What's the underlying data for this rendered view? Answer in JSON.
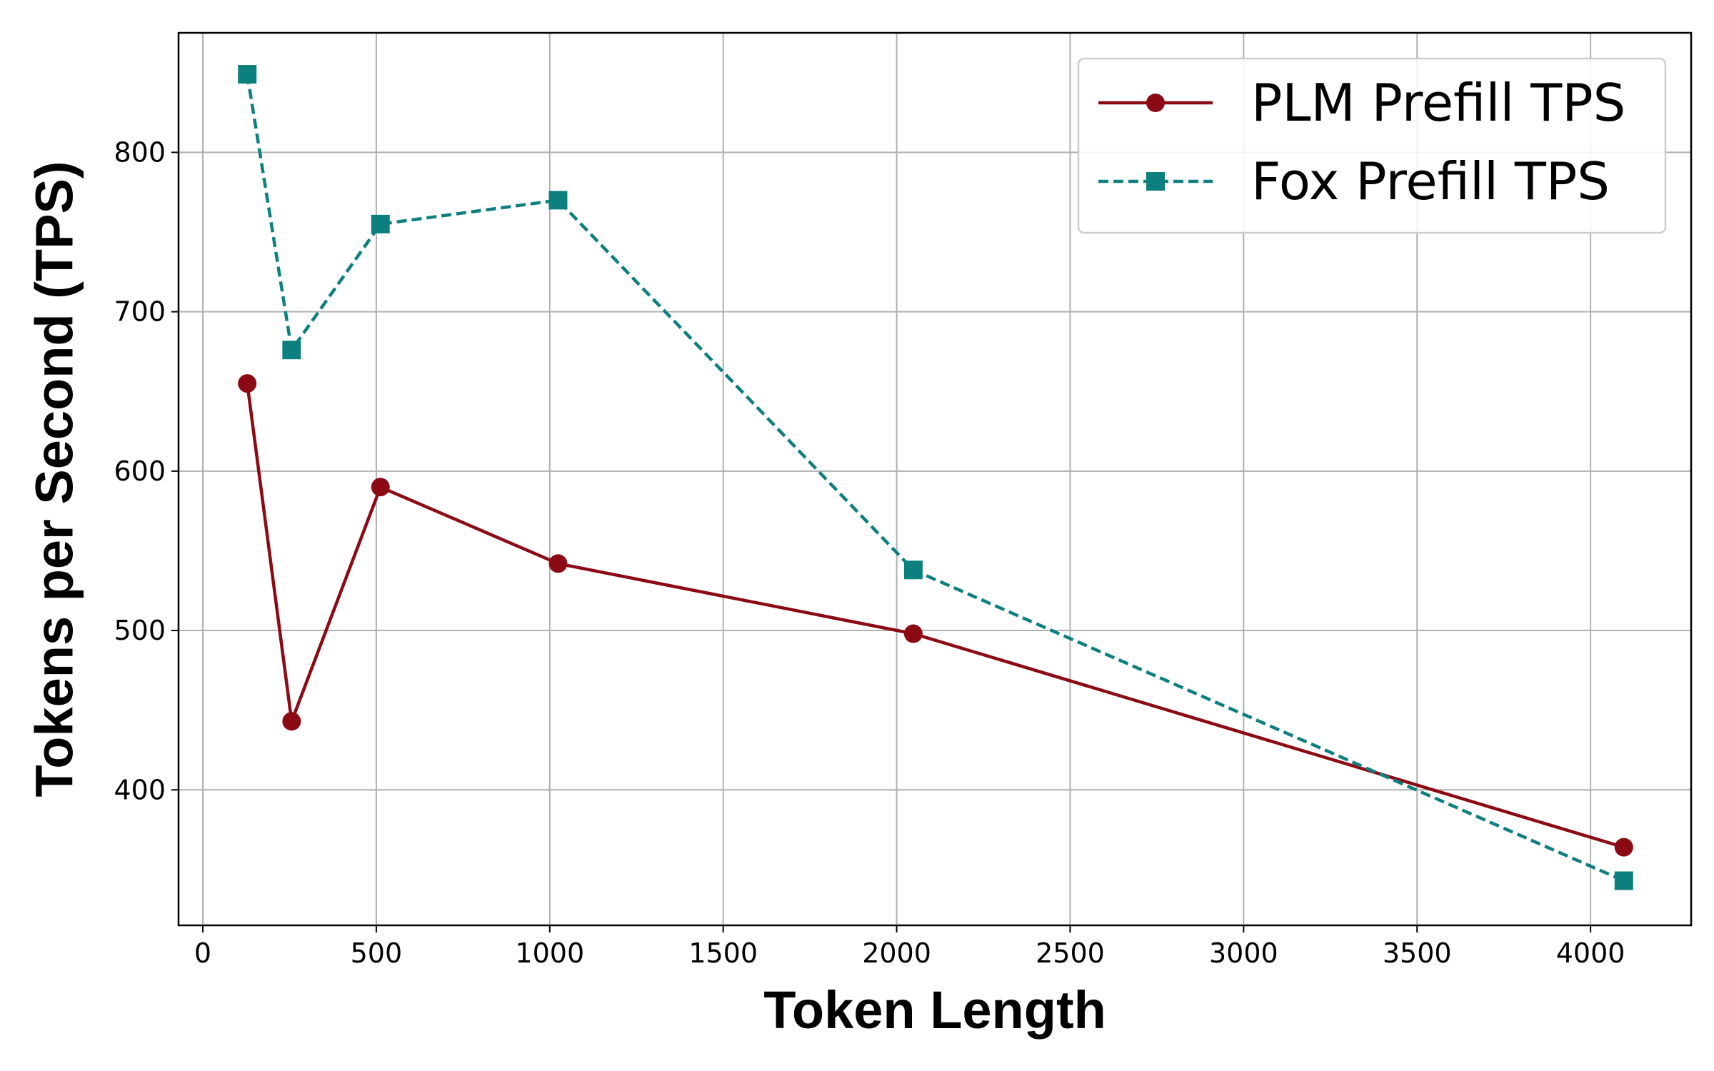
{
  "chart_data": {
    "type": "line",
    "xlabel": "Token Length",
    "ylabel": "Tokens per Second (TPS)",
    "xlim": [
      -70,
      4290
    ],
    "ylim": [
      315,
      875
    ],
    "xticks": [
      0,
      500,
      1000,
      1500,
      2000,
      2500,
      3000,
      3500,
      4000
    ],
    "yticks": [
      400,
      500,
      600,
      700,
      800
    ],
    "grid": true,
    "legend_position": "top-right",
    "series": [
      {
        "name": "PLM Prefill TPS",
        "color": "#8b0a14",
        "line_style": "solid",
        "marker": "circle",
        "x": [
          128,
          256,
          512,
          1024,
          2048,
          4096
        ],
        "y": [
          655,
          443,
          590,
          542,
          498,
          364
        ]
      },
      {
        "name": "Fox Prefill TPS",
        "color": "#0e7f7f",
        "line_style": "dashed",
        "marker": "square",
        "x": [
          128,
          256,
          512,
          1024,
          2048,
          4096
        ],
        "y": [
          849,
          676,
          755,
          770,
          538,
          343
        ]
      }
    ]
  }
}
